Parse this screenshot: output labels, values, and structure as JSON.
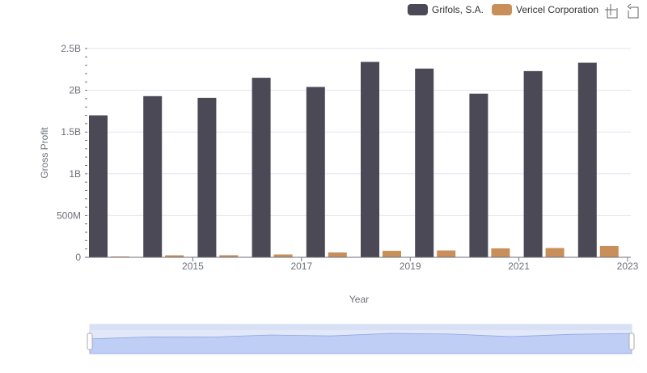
{
  "chart_data": {
    "type": "bar",
    "title": "",
    "xlabel": "Year",
    "ylabel": "Gross Profit",
    "ylim": [
      0,
      2500000000
    ],
    "y_ticks": [
      {
        "value": 0,
        "label": "0"
      },
      {
        "value": 500000000,
        "label": "500M"
      },
      {
        "value": 1000000000,
        "label": "1B"
      },
      {
        "value": 1500000000,
        "label": "1.5B"
      },
      {
        "value": 2000000000,
        "label": "2B"
      },
      {
        "value": 2500000000,
        "label": "2.5B"
      }
    ],
    "categories": [
      "2014",
      "2015",
      "2016",
      "2017",
      "2018",
      "2019",
      "2020",
      "2021",
      "2022",
      "2023"
    ],
    "x_tick_labels": [
      "2015",
      "2017",
      "2019",
      "2021",
      "2023"
    ],
    "legend_position": "top-right",
    "grid": true,
    "series": [
      {
        "name": "Grifols, S.A.",
        "color": "#4a4955",
        "values": [
          1700000000,
          1930000000,
          1910000000,
          2150000000,
          2040000000,
          2340000000,
          2260000000,
          1960000000,
          2230000000,
          2330000000
        ]
      },
      {
        "name": "Vericel Corporation",
        "color": "#c98f5b",
        "values": [
          10000000,
          24000000,
          25000000,
          34000000,
          58000000,
          78000000,
          82000000,
          107000000,
          111000000,
          136000000
        ]
      }
    ]
  },
  "toolbox": {
    "zoom_icon": "zoom-select-icon",
    "reset_icon": "zoom-reset-icon"
  }
}
